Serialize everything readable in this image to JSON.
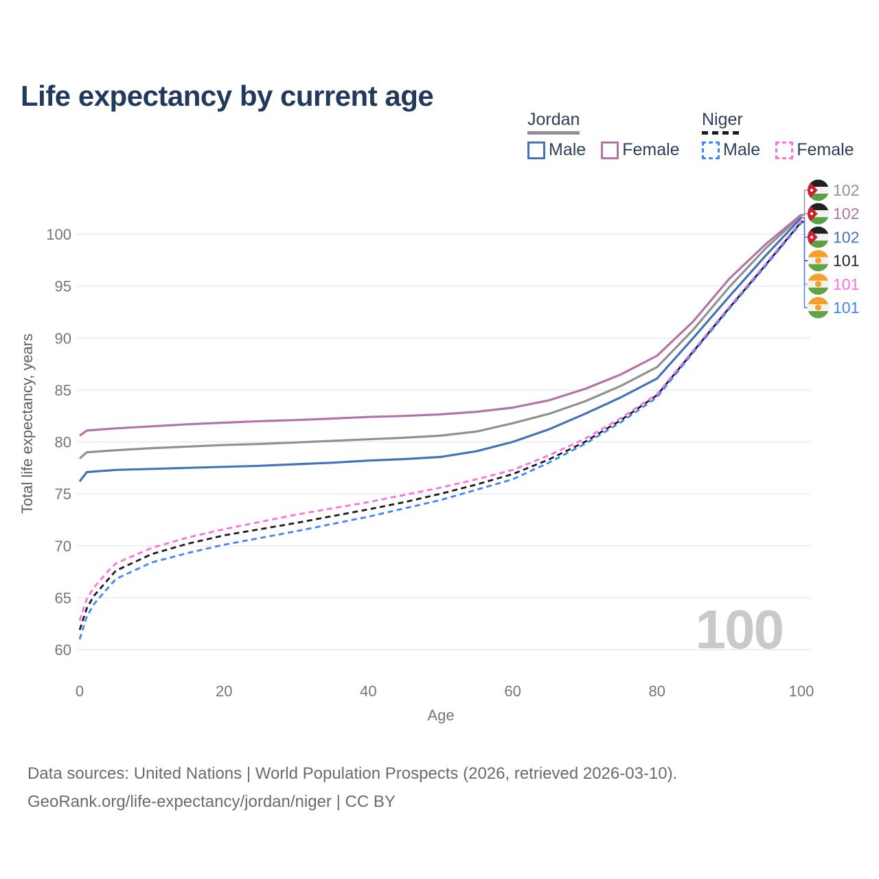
{
  "title": "Life expectancy by current age",
  "legend": {
    "groups": [
      {
        "country": "Jordan",
        "underline_style": "solid",
        "underline_color": "#919191",
        "items": [
          {
            "label": "Male",
            "color": "#4472b8",
            "dashed": false
          },
          {
            "label": "Female",
            "color": "#b273a8",
            "dashed": false
          }
        ]
      },
      {
        "country": "Niger",
        "underline_style": "dashed",
        "underline_color": "#1c1c1c",
        "items": [
          {
            "label": "Male",
            "color": "#3e86f5",
            "dashed": true
          },
          {
            "label": "Female",
            "color": "#ff6fe0",
            "dashed": true
          }
        ]
      }
    ]
  },
  "chart_data": {
    "type": "line",
    "title": "Life expectancy by current age",
    "xlabel": "Age",
    "ylabel": "Total life expectancy, years",
    "xlim": [
      0,
      100
    ],
    "ylim": [
      60,
      102.5
    ],
    "x_ticks": [
      0,
      20,
      40,
      60,
      80,
      100
    ],
    "y_ticks": [
      60,
      65,
      70,
      75,
      80,
      85,
      90,
      95,
      100
    ],
    "grid": "horizontal",
    "legend_position": "top-right",
    "age_counter": "100",
    "ages": [
      0,
      1,
      2,
      3,
      4,
      5,
      10,
      15,
      20,
      25,
      30,
      35,
      40,
      45,
      50,
      55,
      60,
      65,
      70,
      75,
      80,
      85,
      90,
      95,
      100
    ],
    "series": [
      {
        "id": "jordan-total",
        "name": "Jordan (both sexes)",
        "country": "Jordan",
        "color": "#919191",
        "dashed": false,
        "values": [
          78.4,
          79.0,
          79.05,
          79.1,
          79.15,
          79.2,
          79.4,
          79.55,
          79.7,
          79.8,
          79.95,
          80.1,
          80.25,
          80.4,
          80.6,
          81.0,
          81.8,
          82.7,
          83.9,
          85.4,
          87.2,
          90.8,
          94.9,
          98.6,
          101.8
        ]
      },
      {
        "id": "jordan-female",
        "name": "Jordan Female",
        "country": "Jordan",
        "color": "#b273a8",
        "dashed": false,
        "values": [
          80.6,
          81.1,
          81.15,
          81.2,
          81.25,
          81.3,
          81.5,
          81.7,
          81.85,
          82.0,
          82.1,
          82.25,
          82.4,
          82.5,
          82.65,
          82.9,
          83.3,
          84.0,
          85.1,
          86.5,
          88.3,
          91.6,
          95.7,
          99.0,
          101.9
        ]
      },
      {
        "id": "jordan-male",
        "name": "Jordan Male",
        "country": "Jordan",
        "color": "#4472b8",
        "dashed": false,
        "values": [
          76.2,
          77.1,
          77.15,
          77.2,
          77.25,
          77.3,
          77.4,
          77.5,
          77.6,
          77.7,
          77.85,
          78.0,
          78.2,
          78.35,
          78.55,
          79.1,
          80.0,
          81.2,
          82.7,
          84.3,
          86.1,
          90.0,
          94.0,
          97.9,
          101.6
        ]
      },
      {
        "id": "niger-total",
        "name": "Niger (both sexes)",
        "country": "Niger",
        "color": "#1c1c1c",
        "dashed": true,
        "values": [
          61.9,
          64.0,
          65.2,
          66.0,
          66.8,
          67.6,
          69.2,
          70.2,
          71.0,
          71.6,
          72.2,
          72.85,
          73.5,
          74.2,
          75.0,
          75.9,
          76.9,
          78.3,
          80.0,
          82.1,
          84.5,
          88.7,
          92.9,
          97.0,
          101.2
        ]
      },
      {
        "id": "niger-female",
        "name": "Niger Female",
        "country": "Niger",
        "color": "#ff6fe0",
        "dashed": true,
        "values": [
          62.8,
          64.9,
          66.0,
          66.8,
          67.6,
          68.3,
          69.8,
          70.8,
          71.6,
          72.3,
          73.0,
          73.6,
          74.2,
          74.9,
          75.6,
          76.4,
          77.3,
          78.7,
          80.3,
          82.3,
          84.6,
          88.8,
          93.0,
          97.1,
          101.3
        ]
      },
      {
        "id": "niger-male",
        "name": "Niger Male",
        "country": "Niger",
        "color": "#3e86f5",
        "dashed": true,
        "values": [
          61.0,
          63.2,
          64.4,
          65.2,
          66.0,
          66.8,
          68.4,
          69.3,
          70.1,
          70.75,
          71.4,
          72.1,
          72.8,
          73.6,
          74.4,
          75.4,
          76.4,
          78.0,
          79.8,
          81.9,
          84.3,
          88.6,
          92.8,
          96.9,
          101.1
        ]
      }
    ]
  },
  "end_labels": [
    {
      "value": "102",
      "color": "#919191",
      "flag": "jordan",
      "series_id": "jordan-total"
    },
    {
      "value": "102",
      "color": "#b273a8",
      "flag": "jordan",
      "series_id": "jordan-female"
    },
    {
      "value": "102",
      "color": "#4472b8",
      "flag": "jordan",
      "series_id": "jordan-male"
    },
    {
      "value": "101",
      "color": "#1c1c1c",
      "flag": "niger",
      "series_id": "niger-total"
    },
    {
      "value": "101",
      "color": "#ff6fe0",
      "flag": "niger",
      "series_id": "niger-female"
    },
    {
      "value": "101",
      "color": "#3e86f5",
      "flag": "niger",
      "series_id": "niger-male"
    }
  ],
  "footer": {
    "line1": "Data sources: United Nations | World Population Prospects (2026, retrieved 2026-03-10).",
    "line2": "GeoRank.org/life-expectancy/jordan/niger | CC BY"
  }
}
